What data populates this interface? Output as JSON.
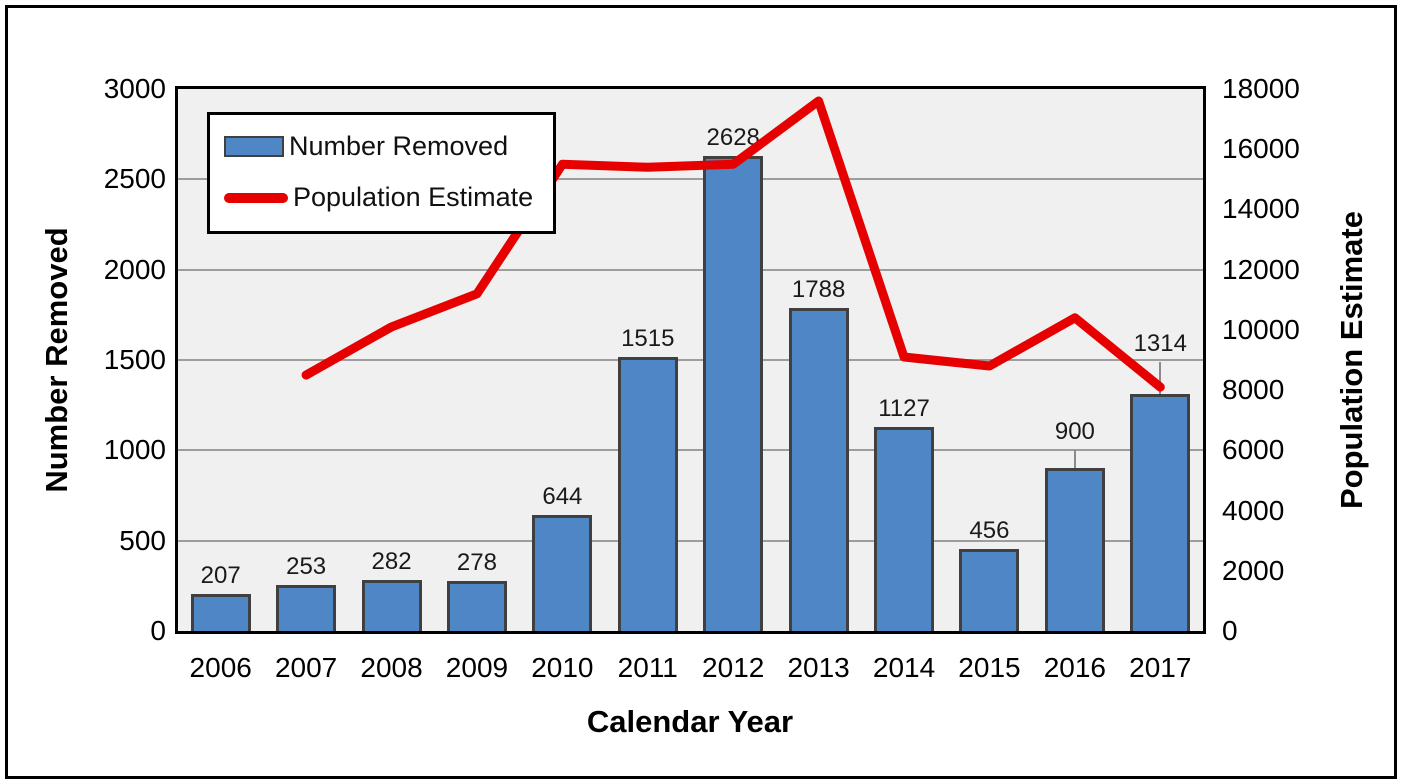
{
  "chart_data": {
    "type": "bar",
    "subtype": "combo-bar-line-dual-axis",
    "categories": [
      "2006",
      "2007",
      "2008",
      "2009",
      "2010",
      "2011",
      "2012",
      "2013",
      "2014",
      "2015",
      "2016",
      "2017"
    ],
    "series": [
      {
        "name": "Number Removed",
        "type": "bar",
        "axis": "left",
        "values": [
          207,
          253,
          282,
          278,
          644,
          1515,
          2628,
          1788,
          1127,
          456,
          900,
          1314
        ],
        "data_labels": [
          "207",
          "253",
          "282",
          "278",
          "644",
          "1515",
          "2628",
          "1788",
          "1127",
          "456",
          "900",
          "1314"
        ],
        "upper_whiskers": [
          null,
          null,
          null,
          null,
          null,
          null,
          null,
          null,
          null,
          null,
          1000,
          1490
        ]
      },
      {
        "name": "Population Estimate",
        "type": "line",
        "axis": "right",
        "values": [
          null,
          8500,
          10100,
          11200,
          15500,
          15400,
          15500,
          17600,
          9100,
          8800,
          10400,
          8100
        ]
      }
    ],
    "xlabel": "Calendar Year",
    "ylabel_left": "Number Removed",
    "ylabel_right": "Population Estimate",
    "left_axis": {
      "min": 0,
      "max": 3000,
      "step": 500,
      "ticks": [
        "0",
        "500",
        "1000",
        "1500",
        "2000",
        "2500",
        "3000"
      ]
    },
    "right_axis": {
      "min": 0,
      "max": 18000,
      "step": 2000,
      "ticks": [
        "0",
        "2000",
        "4000",
        "6000",
        "8000",
        "10000",
        "12000",
        "14000",
        "16000",
        "18000"
      ]
    },
    "grid": "horizontal, every 500 left-axis units",
    "legend_position": "inside top-left",
    "colors": {
      "bar_fill": "#4f86c6",
      "bar_border": "#404040",
      "line": "#e60000",
      "plot_bg": "#f0f0f0",
      "gridline": "#9d9d9d",
      "whisker": "#8a8a8a",
      "text": "#000000",
      "figure_border": "#000000"
    }
  }
}
